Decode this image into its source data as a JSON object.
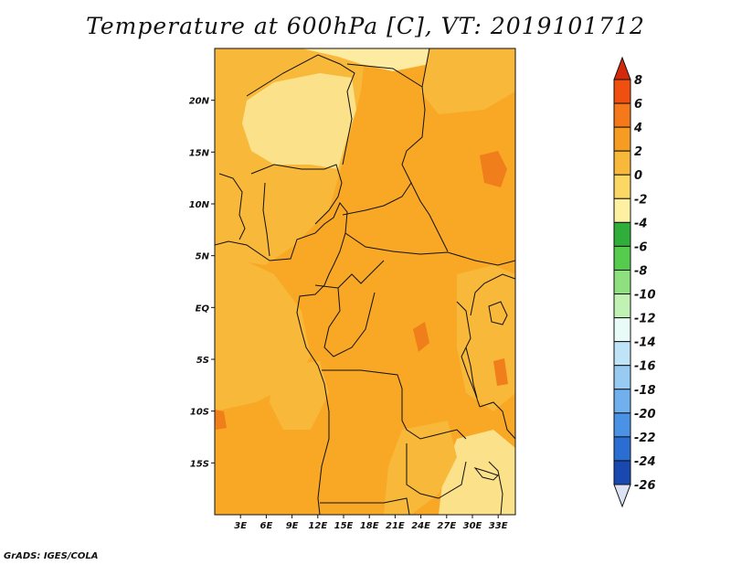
{
  "title": "Temperature at 600hPa [C], VT: 2019101712",
  "credit": "GrADS: IGES/COLA",
  "map": {
    "lon_range": [
      0,
      35
    ],
    "lat_range": [
      -20,
      25
    ],
    "x_ticks": [
      {
        "lon": 3,
        "label": "3E"
      },
      {
        "lon": 6,
        "label": "6E"
      },
      {
        "lon": 9,
        "label": "9E"
      },
      {
        "lon": 12,
        "label": "12E"
      },
      {
        "lon": 15,
        "label": "15E"
      },
      {
        "lon": 18,
        "label": "18E"
      },
      {
        "lon": 21,
        "label": "21E"
      },
      {
        "lon": 24,
        "label": "24E"
      },
      {
        "lon": 27,
        "label": "27E"
      },
      {
        "lon": 30,
        "label": "30E"
      },
      {
        "lon": 33,
        "label": "33E"
      }
    ],
    "y_ticks": [
      {
        "lat": 20,
        "label": "20N"
      },
      {
        "lat": 15,
        "label": "15N"
      },
      {
        "lat": 10,
        "label": "10N"
      },
      {
        "lat": 5,
        "label": "5N"
      },
      {
        "lat": 0,
        "label": "EQ"
      },
      {
        "lat": -5,
        "label": "5S"
      },
      {
        "lat": -10,
        "label": "10S"
      },
      {
        "lat": -15,
        "label": "15S"
      }
    ]
  },
  "colorbar": {
    "levels": [
      "8",
      "6",
      "4",
      "2",
      "0",
      "-2",
      "-4",
      "-6",
      "-8",
      "-10",
      "-12",
      "-14",
      "-16",
      "-18",
      "-20",
      "-22",
      "-24",
      "-26"
    ],
    "colors_top_to_bottom": [
      "#d42a0c",
      "#f0500f",
      "#f5781a",
      "#f79c22",
      "#f8b83a",
      "#fbd766",
      "#fdf0a2",
      "#2fae3a",
      "#56cc4e",
      "#8ee07e",
      "#c1f2b4",
      "#e8fbf6",
      "#bfe4f8",
      "#97cbf2",
      "#6fb0ed",
      "#4a92e6",
      "#2a6ed4",
      "#1848b0",
      "#0c2470"
    ],
    "overflow_low_color": "#dde3f4"
  },
  "regions": {
    "sahel_cool": "#fbe189",
    "central_warm": "#f8a825",
    "west_mid": "#f8b83a",
    "south_mid": "#f79c22",
    "hot_spots": "#f07e1a",
    "north_light": "#fdeba2"
  }
}
